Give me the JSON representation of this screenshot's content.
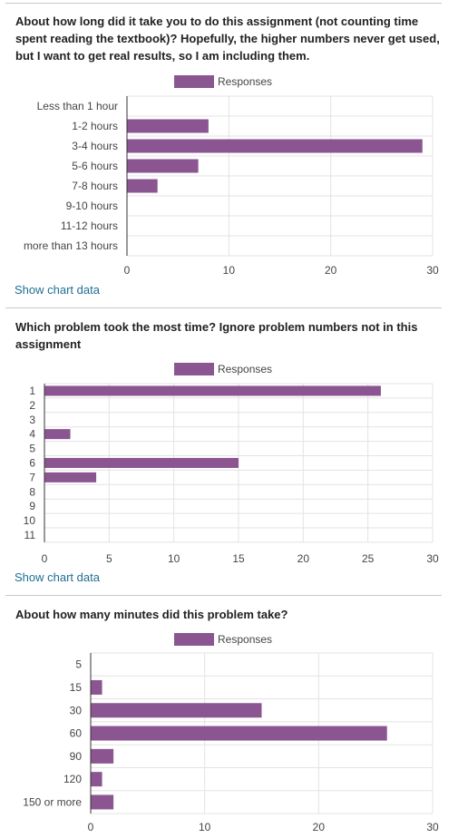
{
  "colors": {
    "bar": "#8b5592",
    "grid": "#e3e3e3",
    "axis": "#333333",
    "link": "#1f6e94",
    "label": "#444444"
  },
  "chart_data": [
    {
      "type": "bar",
      "orientation": "horizontal",
      "title": "About how long did it take you to do this assignment (not counting time spent reading the textbook)? Hopefully, the higher numbers never get used, but I want to get real results, so I am including them.",
      "legend": "Responses",
      "legend_position": "top",
      "categories": [
        "Less than 1 hour",
        "1-2 hours",
        "3-4 hours",
        "5-6 hours",
        "7-8 hours",
        "9-10 hours",
        "11-12 hours",
        "more than 13 hours"
      ],
      "series": [
        {
          "name": "Responses",
          "values": [
            0,
            8,
            29,
            7,
            3,
            0,
            0,
            0
          ]
        }
      ],
      "xlim": [
        0,
        30
      ],
      "xticks": [
        0,
        10,
        20,
        30
      ],
      "grid": true,
      "link": "Show chart data"
    },
    {
      "type": "bar",
      "orientation": "horizontal",
      "title": "Which problem took the most time? Ignore problem numbers not in this assignment",
      "legend": "Responses",
      "legend_position": "top",
      "categories": [
        "1",
        "2",
        "3",
        "4",
        "5",
        "6",
        "7",
        "8",
        "9",
        "10",
        "11"
      ],
      "series": [
        {
          "name": "Responses",
          "values": [
            26,
            0,
            0,
            2,
            0,
            15,
            4,
            0,
            0,
            0,
            0
          ]
        }
      ],
      "xlim": [
        0,
        30
      ],
      "xticks": [
        0,
        5,
        10,
        15,
        20,
        25,
        30
      ],
      "grid": true,
      "link": "Show chart data"
    },
    {
      "type": "bar",
      "orientation": "horizontal",
      "title": "About how many minutes did this problem take?",
      "legend": "Responses",
      "legend_position": "top",
      "categories": [
        "5",
        "15",
        "30",
        "60",
        "90",
        "120",
        "150 or more"
      ],
      "series": [
        {
          "name": "Responses",
          "values": [
            0,
            1,
            15,
            26,
            2,
            1,
            2
          ]
        }
      ],
      "xlim": [
        0,
        30
      ],
      "xticks": [
        0,
        10,
        20,
        30
      ],
      "grid": true
    }
  ]
}
